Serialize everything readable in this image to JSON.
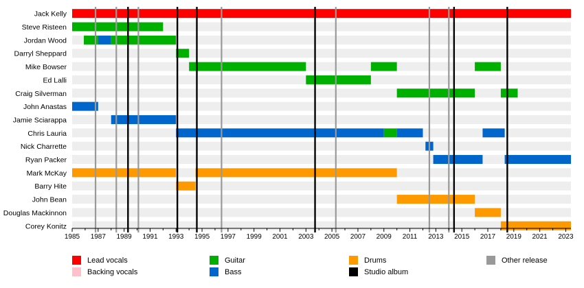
{
  "chart_data": {
    "type": "timeline",
    "x_ticks": [
      1985,
      1987,
      1989,
      1991,
      1993,
      1995,
      1997,
      1999,
      2001,
      2003,
      2005,
      2007,
      2009,
      2011,
      2013,
      2015,
      2017,
      2019,
      2021,
      2023
    ],
    "xlim": [
      1985,
      2023.4
    ],
    "colors": {
      "lead_vocals": "#ff0000",
      "backing_vocals": "#ffc0cb",
      "guitar": "#00b000",
      "bass": "#0066cc",
      "drums": "#ff9900",
      "studio_album": "#000000",
      "other_release": "#999999",
      "row_stripe": "#eeeeee"
    },
    "members": [
      {
        "name": "Jack Kelly",
        "bars": [
          {
            "role": "lead_vocals",
            "start": 1985.0,
            "end": 2023.4
          }
        ]
      },
      {
        "name": "Steve Risteen",
        "bars": [
          {
            "role": "guitar",
            "start": 1985.0,
            "end": 1992.0
          }
        ]
      },
      {
        "name": "Jordan Wood",
        "bars": [
          {
            "role": "guitar",
            "start": 1985.9,
            "end": 1987.0
          },
          {
            "role": "bass",
            "start": 1987.0,
            "end": 1988.0
          },
          {
            "role": "guitar",
            "start": 1988.0,
            "end": 1993.0
          }
        ]
      },
      {
        "name": "Darryl Sheppard",
        "bars": [
          {
            "role": "guitar",
            "start": 1993.0,
            "end": 1994.0
          }
        ]
      },
      {
        "name": "Mike Bowser",
        "bars": [
          {
            "role": "guitar",
            "start": 1994.0,
            "end": 2003.0
          },
          {
            "role": "guitar",
            "start": 2008.0,
            "end": 2010.0
          },
          {
            "role": "guitar",
            "start": 2016.0,
            "end": 2018.0
          }
        ]
      },
      {
        "name": "Ed Lalli",
        "bars": [
          {
            "role": "guitar",
            "start": 2003.0,
            "end": 2008.0
          }
        ]
      },
      {
        "name": "Craig Silverman",
        "bars": [
          {
            "role": "guitar",
            "start": 2010.0,
            "end": 2016.0
          },
          {
            "role": "guitar",
            "start": 2018.0,
            "end": 2019.3
          }
        ]
      },
      {
        "name": "John Anastas",
        "bars": [
          {
            "role": "bass",
            "start": 1985.0,
            "end": 1987.0
          }
        ]
      },
      {
        "name": "Jamie Sciarappa",
        "bars": [
          {
            "role": "bass",
            "start": 1988.0,
            "end": 1993.0
          }
        ]
      },
      {
        "name": "Chris Lauria",
        "bars": [
          {
            "role": "bass",
            "start": 1993.0,
            "end": 2009.0
          },
          {
            "role": "guitar",
            "start": 2009.0,
            "end": 2010.0
          },
          {
            "role": "bass",
            "start": 2010.0,
            "end": 2012.0
          },
          {
            "role": "bass",
            "start": 2016.6,
            "end": 2018.3
          }
        ]
      },
      {
        "name": "Nick Charrette",
        "bars": [
          {
            "role": "bass",
            "start": 2012.2,
            "end": 2012.8
          }
        ]
      },
      {
        "name": "Ryan Packer",
        "bars": [
          {
            "role": "bass",
            "start": 2012.8,
            "end": 2016.6
          },
          {
            "role": "bass",
            "start": 2018.3,
            "end": 2023.4
          }
        ]
      },
      {
        "name": "Mark McKay",
        "bars": [
          {
            "role": "drums",
            "start": 1985.0,
            "end": 1993.0
          },
          {
            "role": "drums",
            "start": 1994.5,
            "end": 2010.0
          }
        ]
      },
      {
        "name": "Barry Hite",
        "bars": [
          {
            "role": "drums",
            "start": 1993.0,
            "end": 1994.5
          }
        ]
      },
      {
        "name": "John Bean",
        "bars": [
          {
            "role": "drums",
            "start": 2010.0,
            "end": 2016.0
          }
        ]
      },
      {
        "name": "Douglas Mackinnon",
        "bars": [
          {
            "role": "drums",
            "start": 2016.0,
            "end": 2018.0
          }
        ]
      },
      {
        "name": "Corey Konitz",
        "bars": [
          {
            "role": "drums",
            "start": 2018.0,
            "end": 2023.4
          }
        ]
      }
    ],
    "studio_albums": [
      1989.3,
      1993.1,
      1994.6,
      2003.7,
      2014.4,
      2018.5
    ],
    "other_releases": [
      1986.8,
      1988.4,
      1990.1,
      1996.5,
      2005.3,
      2012.5,
      2014.0
    ],
    "legend": [
      {
        "label": "Lead vocals",
        "color": "#ff0000"
      },
      {
        "label": "Backing vocals",
        "color": "#ffc0cb"
      },
      {
        "label": "Guitar",
        "color": "#00b000"
      },
      {
        "label": "Bass",
        "color": "#0066cc"
      },
      {
        "label": "Drums",
        "color": "#ff9900"
      },
      {
        "label": "Studio album",
        "color": "#000000"
      },
      {
        "label": "Other release",
        "color": "#999999"
      }
    ]
  }
}
